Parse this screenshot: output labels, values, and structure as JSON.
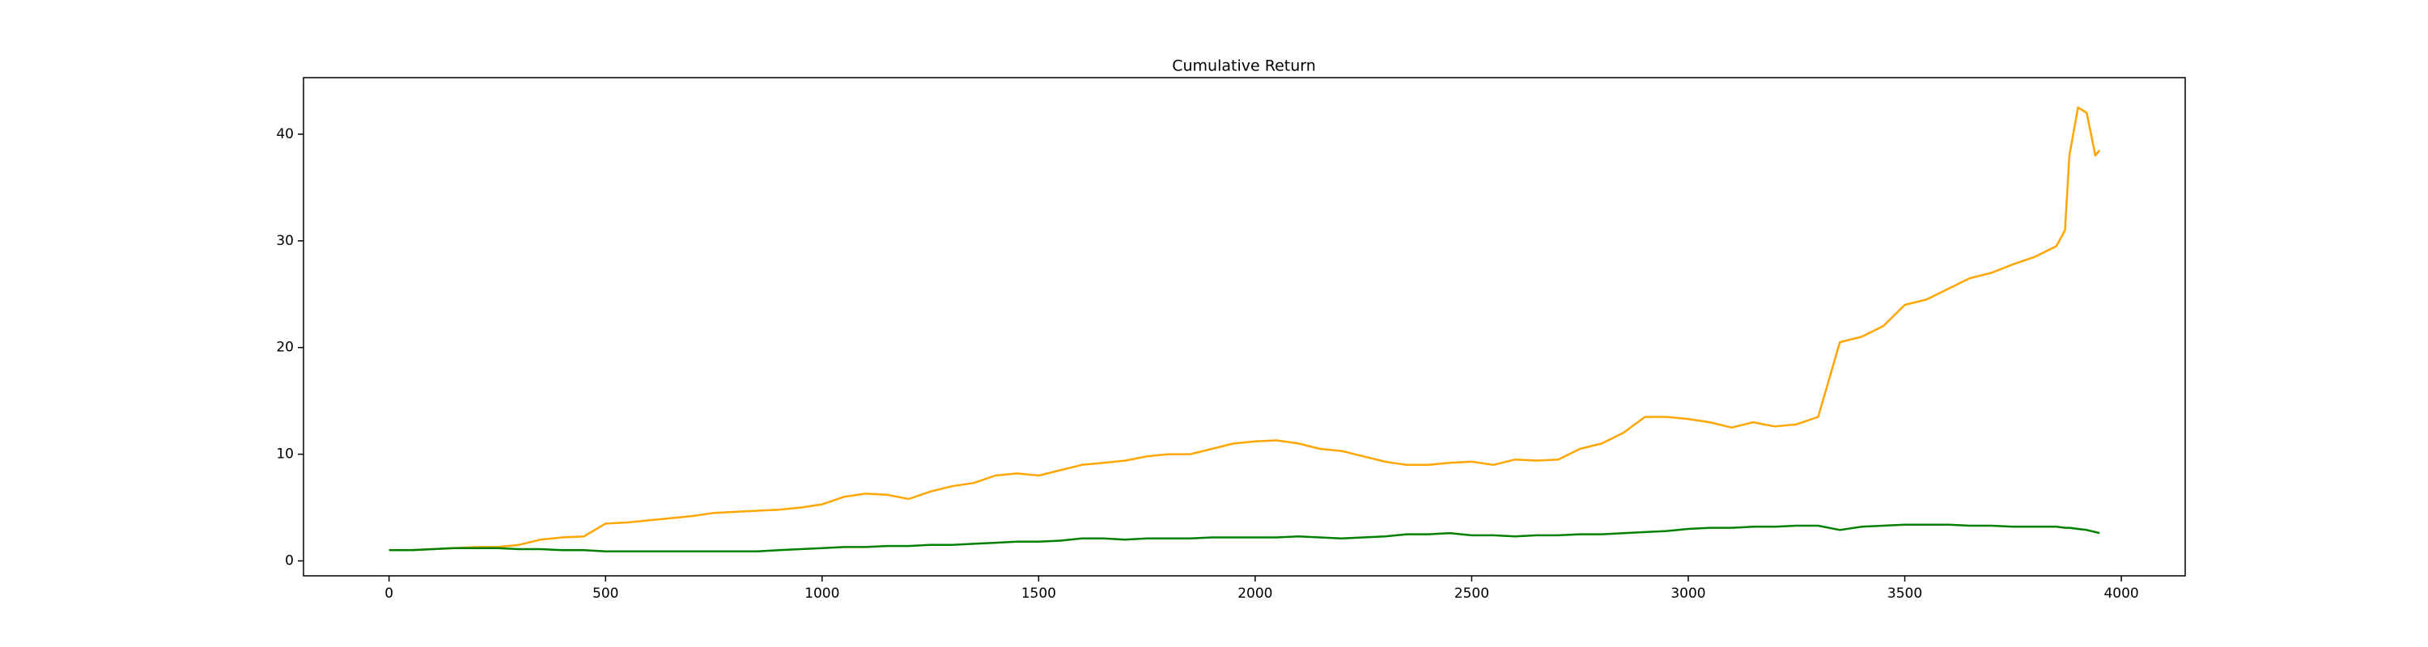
{
  "chart_data": {
    "type": "line",
    "title": "Cumulative Return",
    "x": [
      0,
      50,
      100,
      150,
      200,
      250,
      300,
      350,
      400,
      450,
      500,
      550,
      600,
      650,
      700,
      750,
      800,
      850,
      900,
      950,
      1000,
      1050,
      1100,
      1150,
      1200,
      1250,
      1300,
      1350,
      1400,
      1450,
      1500,
      1550,
      1600,
      1650,
      1700,
      1750,
      1800,
      1850,
      1900,
      1950,
      2000,
      2050,
      2100,
      2150,
      2200,
      2250,
      2300,
      2350,
      2400,
      2450,
      2500,
      2550,
      2600,
      2650,
      2700,
      2750,
      2800,
      2850,
      2900,
      2950,
      3000,
      3050,
      3100,
      3150,
      3200,
      3250,
      3300,
      3350,
      3400,
      3450,
      3500,
      3550,
      3600,
      3650,
      3700,
      3750,
      3800,
      3850,
      3870,
      3880,
      3900,
      3920,
      3940,
      3950
    ],
    "series": [
      {
        "color": "#ffa500",
        "values": [
          1.0,
          1.0,
          1.1,
          1.2,
          1.3,
          1.3,
          1.5,
          2.0,
          2.2,
          2.3,
          3.5,
          3.6,
          3.8,
          4.0,
          4.2,
          4.5,
          4.6,
          4.7,
          4.8,
          5.0,
          5.3,
          6.0,
          6.3,
          6.2,
          5.8,
          6.5,
          7.0,
          7.3,
          8.0,
          8.2,
          8.0,
          8.5,
          9.0,
          9.2,
          9.4,
          9.8,
          10.0,
          10.0,
          10.5,
          11.0,
          11.2,
          11.3,
          11.0,
          10.5,
          10.3,
          9.8,
          9.3,
          9.0,
          9.0,
          9.2,
          9.3,
          9.0,
          9.5,
          9.4,
          9.5,
          10.5,
          11.0,
          12.0,
          13.5,
          13.5,
          13.3,
          13.0,
          12.5,
          13.0,
          12.6,
          12.8,
          13.5,
          20.5,
          21.0,
          22.0,
          24.0,
          24.5,
          25.5,
          26.5,
          27.0,
          27.8,
          28.5,
          29.5,
          31.0,
          38.0,
          42.5,
          42.0,
          38.0,
          38.5
        ]
      },
      {
        "color": "#008000",
        "values": [
          1.0,
          1.0,
          1.1,
          1.2,
          1.2,
          1.2,
          1.1,
          1.1,
          1.0,
          1.0,
          0.9,
          0.9,
          0.9,
          0.9,
          0.9,
          0.9,
          0.9,
          0.9,
          1.0,
          1.1,
          1.2,
          1.3,
          1.3,
          1.4,
          1.4,
          1.5,
          1.5,
          1.6,
          1.7,
          1.8,
          1.8,
          1.9,
          2.1,
          2.1,
          2.0,
          2.1,
          2.1,
          2.1,
          2.2,
          2.2,
          2.2,
          2.2,
          2.3,
          2.2,
          2.1,
          2.2,
          2.3,
          2.5,
          2.5,
          2.6,
          2.4,
          2.4,
          2.3,
          2.4,
          2.4,
          2.5,
          2.5,
          2.6,
          2.7,
          2.8,
          3.0,
          3.1,
          3.1,
          3.2,
          3.2,
          3.3,
          3.3,
          2.9,
          3.2,
          3.3,
          3.4,
          3.4,
          3.4,
          3.3,
          3.3,
          3.2,
          3.2,
          3.2,
          3.1,
          3.1,
          3.0,
          2.9,
          2.7,
          2.6
        ]
      }
    ],
    "xlim": [
      -197.5,
      4147.5
    ],
    "xticks": [
      0,
      500,
      1000,
      1500,
      2000,
      2500,
      3000,
      3500,
      4000
    ],
    "ylim": [
      -1.4,
      45.3
    ],
    "yticks": [
      0,
      10,
      20,
      30,
      40
    ],
    "grid": false
  }
}
